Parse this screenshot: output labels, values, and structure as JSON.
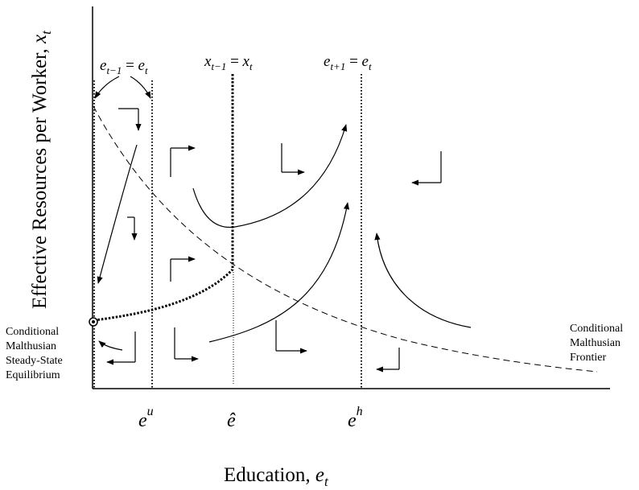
{
  "axes": {
    "x_label": "Education,",
    "x_label_var": "e",
    "x_label_sub": "t",
    "y_label": "Effective Resources per Worker,",
    "y_label_var": "x",
    "y_label_sub": "t"
  },
  "loci": {
    "e_lower": {
      "base": "e",
      "sub1": "t−1",
      "eq": " = ",
      "base2": "e",
      "sub2": "t"
    },
    "x_locus": {
      "base": "x",
      "sub1": "t−1",
      "eq": " = ",
      "base2": "x",
      "sub2": "t"
    },
    "e_upper": {
      "base": "e",
      "sub1": "t+1",
      "eq": " = ",
      "base2": "e",
      "sub2": "t"
    }
  },
  "ticks": {
    "e_u": {
      "base": "e",
      "sup": "u"
    },
    "e_hat": {
      "base": "ê"
    },
    "e_h": {
      "base": "e",
      "sup": "h"
    }
  },
  "left_label": [
    "Conditional",
    "Malthusian",
    "Steady-State",
    "Equilibrium"
  ],
  "right_label": [
    "Conditional",
    "Malthusian",
    "Frontier"
  ]
}
